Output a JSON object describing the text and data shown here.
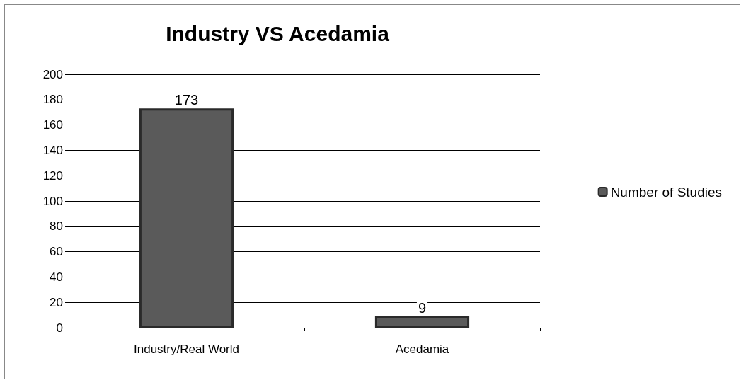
{
  "chart_data": {
    "type": "bar",
    "title": "Industry VS Acedamia",
    "categories": [
      "Industry/Real World",
      "Acedamia"
    ],
    "series": [
      {
        "name": "Number of Studies",
        "color": "#5a5a5a",
        "values": [
          173,
          9
        ]
      }
    ],
    "ylim": [
      0,
      200
    ],
    "yticks": [
      0,
      20,
      40,
      60,
      80,
      100,
      120,
      140,
      160,
      180,
      200
    ],
    "grid": "y",
    "legend": "right",
    "data_labels": true
  }
}
